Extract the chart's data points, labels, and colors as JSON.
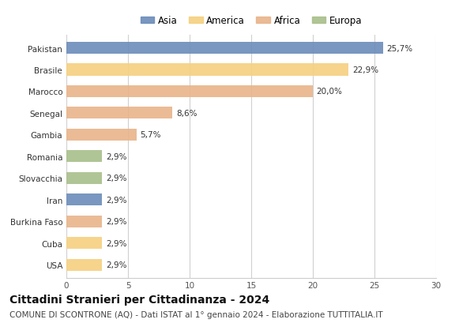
{
  "categories": [
    "Pakistan",
    "Brasile",
    "Marocco",
    "Senegal",
    "Gambia",
    "Romania",
    "Slovacchia",
    "Iran",
    "Burkina Faso",
    "Cuba",
    "USA"
  ],
  "values": [
    25.7,
    22.9,
    20.0,
    8.6,
    5.7,
    2.9,
    2.9,
    2.9,
    2.9,
    2.9,
    2.9
  ],
  "colors": [
    "#6b8cba",
    "#f5d080",
    "#e8b48a",
    "#e8b48a",
    "#e8b48a",
    "#a8bf8a",
    "#a8bf8a",
    "#6b8cba",
    "#e8b48a",
    "#f5d080",
    "#f5d080"
  ],
  "value_labels": [
    "25,7%",
    "22,9%",
    "20,0%",
    "8,6%",
    "5,7%",
    "2,9%",
    "2,9%",
    "2,9%",
    "2,9%",
    "2,9%",
    "2,9%"
  ],
  "legend_labels": [
    "Asia",
    "America",
    "Africa",
    "Europa"
  ],
  "legend_colors": [
    "#6b8cba",
    "#f5d080",
    "#e8b48a",
    "#a8bf8a"
  ],
  "xlim": [
    0,
    30
  ],
  "xticks": [
    0,
    5,
    10,
    15,
    20,
    25,
    30
  ],
  "title": "Cittadini Stranieri per Cittadinanza - 2024",
  "subtitle": "COMUNE DI SCONTRONE (AQ) - Dati ISTAT al 1° gennaio 2024 - Elaborazione TUTTITALIA.IT",
  "background_color": "#ffffff",
  "grid_color": "#d0d0d0",
  "bar_height": 0.55,
  "title_fontsize": 10,
  "subtitle_fontsize": 7.5,
  "label_fontsize": 7.5,
  "tick_fontsize": 7.5,
  "legend_fontsize": 8.5
}
